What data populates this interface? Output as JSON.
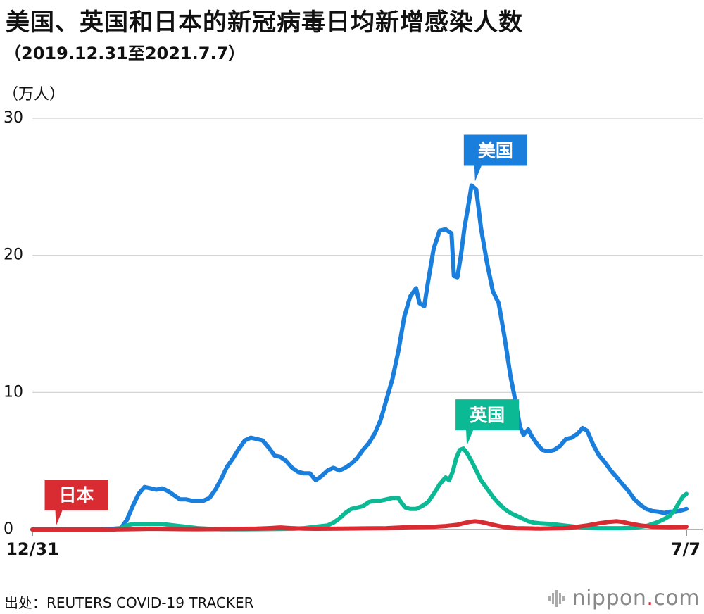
{
  "header": {
    "title": "美国、英国和日本的新冠病毒日均新增感染人数",
    "subtitle": "（2019.12.31至2021.7.7）"
  },
  "footer": {
    "source": "出处：REUTERS COVID-19 TRACKER",
    "logo_main": "nippon",
    "logo_dot": ".",
    "logo_tld": "com"
  },
  "chart_data": {
    "type": "line",
    "title": "美国、英国和日本的新冠病毒日均新增感染人数",
    "subtitle": "（2019.12.31至2021.7.7）",
    "ylabel": "（万人）",
    "xlabel": "",
    "ylim": [
      0,
      30
    ],
    "xlim": [
      0,
      554
    ],
    "x_unit": "days since 2019-12-31",
    "yticks": [
      {
        "value": 0,
        "label": "0"
      },
      {
        "value": 10,
        "label": "10"
      },
      {
        "value": 20,
        "label": "20"
      },
      {
        "value": 30,
        "label": "30"
      }
    ],
    "xticks": [
      {
        "value": 0,
        "label": "12/31"
      },
      {
        "value": 554,
        "label": "7/7"
      }
    ],
    "grid": true,
    "series": [
      {
        "name": "美国",
        "color": "#1a7fdc",
        "label_at": [
          375,
          25.2
        ],
        "points": [
          [
            0,
            0
          ],
          [
            60,
            0
          ],
          [
            75,
            0.1
          ],
          [
            80,
            0.7
          ],
          [
            85,
            1.7
          ],
          [
            90,
            2.6
          ],
          [
            95,
            3.1
          ],
          [
            100,
            3.0
          ],
          [
            105,
            2.9
          ],
          [
            110,
            3.0
          ],
          [
            115,
            2.8
          ],
          [
            120,
            2.5
          ],
          [
            125,
            2.2
          ],
          [
            130,
            2.2
          ],
          [
            135,
            2.1
          ],
          [
            140,
            2.1
          ],
          [
            145,
            2.1
          ],
          [
            150,
            2.3
          ],
          [
            155,
            2.9
          ],
          [
            160,
            3.7
          ],
          [
            165,
            4.6
          ],
          [
            170,
            5.2
          ],
          [
            175,
            5.9
          ],
          [
            180,
            6.5
          ],
          [
            185,
            6.7
          ],
          [
            190,
            6.6
          ],
          [
            195,
            6.5
          ],
          [
            200,
            6.0
          ],
          [
            205,
            5.4
          ],
          [
            210,
            5.3
          ],
          [
            215,
            5.0
          ],
          [
            220,
            4.5
          ],
          [
            225,
            4.2
          ],
          [
            230,
            4.1
          ],
          [
            235,
            4.1
          ],
          [
            240,
            3.6
          ],
          [
            245,
            3.9
          ],
          [
            250,
            4.3
          ],
          [
            255,
            4.5
          ],
          [
            260,
            4.3
          ],
          [
            265,
            4.5
          ],
          [
            270,
            4.8
          ],
          [
            275,
            5.2
          ],
          [
            280,
            5.8
          ],
          [
            285,
            6.3
          ],
          [
            290,
            7.0
          ],
          [
            295,
            8.0
          ],
          [
            300,
            9.5
          ],
          [
            305,
            11.0
          ],
          [
            310,
            13.0
          ],
          [
            315,
            15.5
          ],
          [
            320,
            17.0
          ],
          [
            325,
            17.6
          ],
          [
            328,
            16.5
          ],
          [
            332,
            16.3
          ],
          [
            335,
            18.0
          ],
          [
            340,
            20.5
          ],
          [
            345,
            21.8
          ],
          [
            350,
            21.9
          ],
          [
            355,
            21.6
          ],
          [
            357,
            18.5
          ],
          [
            360,
            18.4
          ],
          [
            363,
            20.0
          ],
          [
            366,
            22.0
          ],
          [
            369,
            23.5
          ],
          [
            372,
            25.1
          ],
          [
            376,
            24.8
          ],
          [
            380,
            22.0
          ],
          [
            385,
            19.5
          ],
          [
            390,
            17.4
          ],
          [
            395,
            16.5
          ],
          [
            400,
            14.0
          ],
          [
            405,
            11.2
          ],
          [
            410,
            9.0
          ],
          [
            413,
            7.5
          ],
          [
            416,
            6.9
          ],
          [
            420,
            7.3
          ],
          [
            423,
            6.8
          ],
          [
            427,
            6.3
          ],
          [
            432,
            5.8
          ],
          [
            437,
            5.7
          ],
          [
            442,
            5.8
          ],
          [
            447,
            6.1
          ],
          [
            452,
            6.6
          ],
          [
            457,
            6.7
          ],
          [
            462,
            7.0
          ],
          [
            466,
            7.4
          ],
          [
            470,
            7.2
          ],
          [
            475,
            6.2
          ],
          [
            480,
            5.4
          ],
          [
            485,
            4.9
          ],
          [
            490,
            4.3
          ],
          [
            495,
            3.8
          ],
          [
            500,
            3.3
          ],
          [
            505,
            2.8
          ],
          [
            510,
            2.2
          ],
          [
            515,
            1.8
          ],
          [
            520,
            1.5
          ],
          [
            525,
            1.35
          ],
          [
            530,
            1.3
          ],
          [
            535,
            1.2
          ],
          [
            540,
            1.3
          ],
          [
            545,
            1.3
          ],
          [
            550,
            1.4
          ],
          [
            554,
            1.5
          ]
        ]
      },
      {
        "name": "英国",
        "color": "#0bb995",
        "label_at": [
          368,
          5.9
        ],
        "points": [
          [
            0,
            0
          ],
          [
            70,
            0
          ],
          [
            75,
            0.1
          ],
          [
            80,
            0.3
          ],
          [
            85,
            0.4
          ],
          [
            90,
            0.4
          ],
          [
            100,
            0.4
          ],
          [
            110,
            0.4
          ],
          [
            120,
            0.3
          ],
          [
            130,
            0.2
          ],
          [
            140,
            0.1
          ],
          [
            150,
            0.05
          ],
          [
            160,
            0.02
          ],
          [
            180,
            0.02
          ],
          [
            200,
            0.03
          ],
          [
            220,
            0.05
          ],
          [
            230,
            0.1
          ],
          [
            240,
            0.2
          ],
          [
            250,
            0.3
          ],
          [
            255,
            0.5
          ],
          [
            260,
            0.8
          ],
          [
            265,
            1.2
          ],
          [
            270,
            1.5
          ],
          [
            275,
            1.6
          ],
          [
            280,
            1.7
          ],
          [
            285,
            2.0
          ],
          [
            290,
            2.1
          ],
          [
            295,
            2.1
          ],
          [
            300,
            2.2
          ],
          [
            305,
            2.3
          ],
          [
            310,
            2.3
          ],
          [
            313,
            1.9
          ],
          [
            316,
            1.6
          ],
          [
            320,
            1.5
          ],
          [
            325,
            1.5
          ],
          [
            330,
            1.7
          ],
          [
            335,
            2.0
          ],
          [
            340,
            2.6
          ],
          [
            345,
            3.3
          ],
          [
            350,
            3.8
          ],
          [
            353,
            3.6
          ],
          [
            356,
            4.2
          ],
          [
            359,
            5.2
          ],
          [
            362,
            5.8
          ],
          [
            365,
            5.9
          ],
          [
            368,
            5.6
          ],
          [
            372,
            5.0
          ],
          [
            376,
            4.3
          ],
          [
            380,
            3.6
          ],
          [
            385,
            3.0
          ],
          [
            390,
            2.4
          ],
          [
            395,
            1.9
          ],
          [
            400,
            1.5
          ],
          [
            405,
            1.2
          ],
          [
            410,
            1.0
          ],
          [
            415,
            0.8
          ],
          [
            420,
            0.6
          ],
          [
            425,
            0.5
          ],
          [
            430,
            0.45
          ],
          [
            440,
            0.4
          ],
          [
            450,
            0.3
          ],
          [
            460,
            0.2
          ],
          [
            470,
            0.15
          ],
          [
            480,
            0.1
          ],
          [
            490,
            0.1
          ],
          [
            500,
            0.1
          ],
          [
            510,
            0.15
          ],
          [
            520,
            0.25
          ],
          [
            525,
            0.4
          ],
          [
            530,
            0.55
          ],
          [
            535,
            0.75
          ],
          [
            540,
            1.0
          ],
          [
            544,
            1.4
          ],
          [
            548,
            2.0
          ],
          [
            551,
            2.4
          ],
          [
            554,
            2.6
          ]
        ]
      },
      {
        "name": "日本",
        "color": "#d92b32",
        "label_at": [
          20,
          0.05
        ],
        "points": [
          [
            0,
            0
          ],
          [
            60,
            0
          ],
          [
            80,
            0.02
          ],
          [
            90,
            0.03
          ],
          [
            100,
            0.05
          ],
          [
            120,
            0.03
          ],
          [
            140,
            0.02
          ],
          [
            160,
            0.03
          ],
          [
            180,
            0.05
          ],
          [
            190,
            0.06
          ],
          [
            200,
            0.1
          ],
          [
            210,
            0.15
          ],
          [
            220,
            0.1
          ],
          [
            230,
            0.06
          ],
          [
            240,
            0.05
          ],
          [
            260,
            0.06
          ],
          [
            280,
            0.08
          ],
          [
            300,
            0.1
          ],
          [
            320,
            0.18
          ],
          [
            340,
            0.2
          ],
          [
            350,
            0.25
          ],
          [
            360,
            0.35
          ],
          [
            365,
            0.45
          ],
          [
            370,
            0.55
          ],
          [
            375,
            0.6
          ],
          [
            380,
            0.55
          ],
          [
            385,
            0.45
          ],
          [
            390,
            0.35
          ],
          [
            395,
            0.25
          ],
          [
            400,
            0.18
          ],
          [
            410,
            0.1
          ],
          [
            420,
            0.08
          ],
          [
            430,
            0.06
          ],
          [
            440,
            0.08
          ],
          [
            450,
            0.1
          ],
          [
            460,
            0.18
          ],
          [
            470,
            0.3
          ],
          [
            480,
            0.45
          ],
          [
            488,
            0.55
          ],
          [
            495,
            0.6
          ],
          [
            500,
            0.55
          ],
          [
            505,
            0.45
          ],
          [
            515,
            0.3
          ],
          [
            525,
            0.2
          ],
          [
            540,
            0.18
          ],
          [
            554,
            0.2
          ]
        ]
      }
    ]
  }
}
